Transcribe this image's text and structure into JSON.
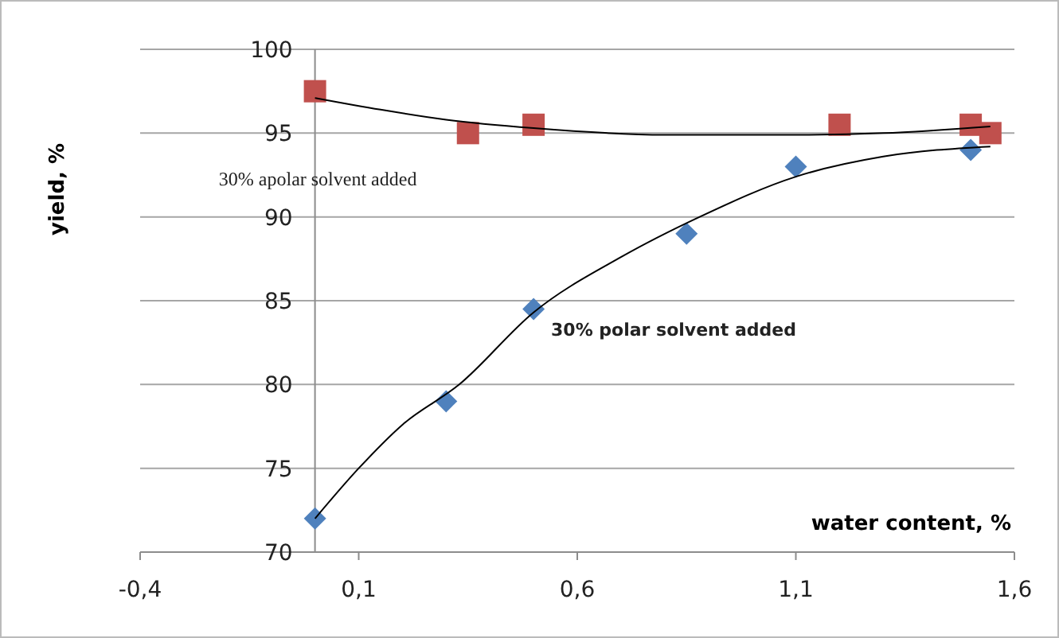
{
  "chart_data": {
    "type": "scatter",
    "xlabel": "water content, %",
    "ylabel": "yield, %",
    "xlim": [
      -0.4,
      1.6
    ],
    "xticks": [
      {
        "value": -0.4,
        "label": "-0,4"
      },
      {
        "value": 0.1,
        "label": "0,1"
      },
      {
        "value": 0.6,
        "label": "0,6"
      },
      {
        "value": 1.1,
        "label": "1,1"
      },
      {
        "value": 1.6,
        "label": "1,6"
      }
    ],
    "ylim": [
      70,
      100
    ],
    "yticks": [
      70,
      75,
      80,
      85,
      90,
      95,
      100
    ],
    "grid": "y",
    "series": [
      {
        "color": "#c0504d",
        "marker": "square",
        "x": [
          0,
          0.35,
          0.5,
          1.2,
          1.5,
          1.545
        ],
        "values": [
          97.5,
          95,
          95.5,
          95.5,
          95.5,
          95
        ]
      },
      {
        "color": "#4f81bd",
        "marker": "diamond",
        "x": [
          0,
          0.3,
          0.5,
          0.85,
          1.1,
          1.5
        ],
        "values": [
          72,
          79,
          84.5,
          89,
          93,
          94
        ]
      },
      {
        "type": "line",
        "color": "#000000",
        "marker": "none",
        "x": [
          0,
          0.15,
          0.3,
          0.5,
          0.8,
          1.1,
          1.3,
          1.545
        ],
        "values": [
          97.1,
          96.4,
          95.8,
          95.3,
          94.9,
          94.9,
          95,
          95.4
        ]
      },
      {
        "type": "line",
        "color": "#000000",
        "marker": "none",
        "x": [
          0,
          0.1,
          0.2,
          0.33,
          0.5,
          0.7,
          0.88,
          1.1,
          1.3,
          1.545
        ],
        "values": [
          72,
          75,
          77.6,
          80,
          84.3,
          87.6,
          90,
          92.4,
          93.6,
          94.2
        ]
      }
    ],
    "annotations": [
      "30% apolar solvent added",
      "30% polar solvent added"
    ]
  }
}
